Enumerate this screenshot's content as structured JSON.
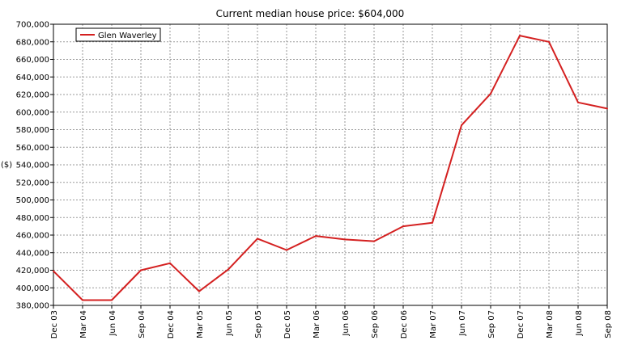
{
  "chart_data": {
    "type": "line",
    "title": "Current median house price: $604,000",
    "ylabel": "($)",
    "xlabel": "",
    "ylim": [
      380000,
      700000
    ],
    "yticks": [
      380000,
      400000,
      420000,
      440000,
      460000,
      480000,
      500000,
      520000,
      540000,
      560000,
      580000,
      600000,
      620000,
      640000,
      660000,
      680000,
      700000
    ],
    "ytick_labels": [
      "380,000",
      "400,000",
      "420,000",
      "440,000",
      "460,000",
      "480,000",
      "500,000",
      "520,000",
      "540,000",
      "560,000",
      "580,000",
      "600,000",
      "620,000",
      "640,000",
      "660,000",
      "680,000",
      "700,000"
    ],
    "categories": [
      "Dec 03",
      "Mar 04",
      "Jun 04",
      "Sep 04",
      "Dec 04",
      "Mar 05",
      "Jun 05",
      "Sep 05",
      "Dec 05",
      "Mar 06",
      "Jun 06",
      "Sep 06",
      "Dec 06",
      "Mar 07",
      "Jun 07",
      "Sep 07",
      "Dec 07",
      "Mar 08",
      "Jun 08",
      "Sep 08"
    ],
    "series": [
      {
        "name": "Glen Waverley",
        "color": "#d42020",
        "values": [
          419000,
          386000,
          386000,
          420000,
          428000,
          396000,
          421000,
          456000,
          443000,
          459000,
          455000,
          453000,
          470000,
          474000,
          585000,
          621000,
          687000,
          680000,
          611000,
          604000
        ]
      }
    ],
    "grid": true,
    "legend_position": "top-left"
  }
}
